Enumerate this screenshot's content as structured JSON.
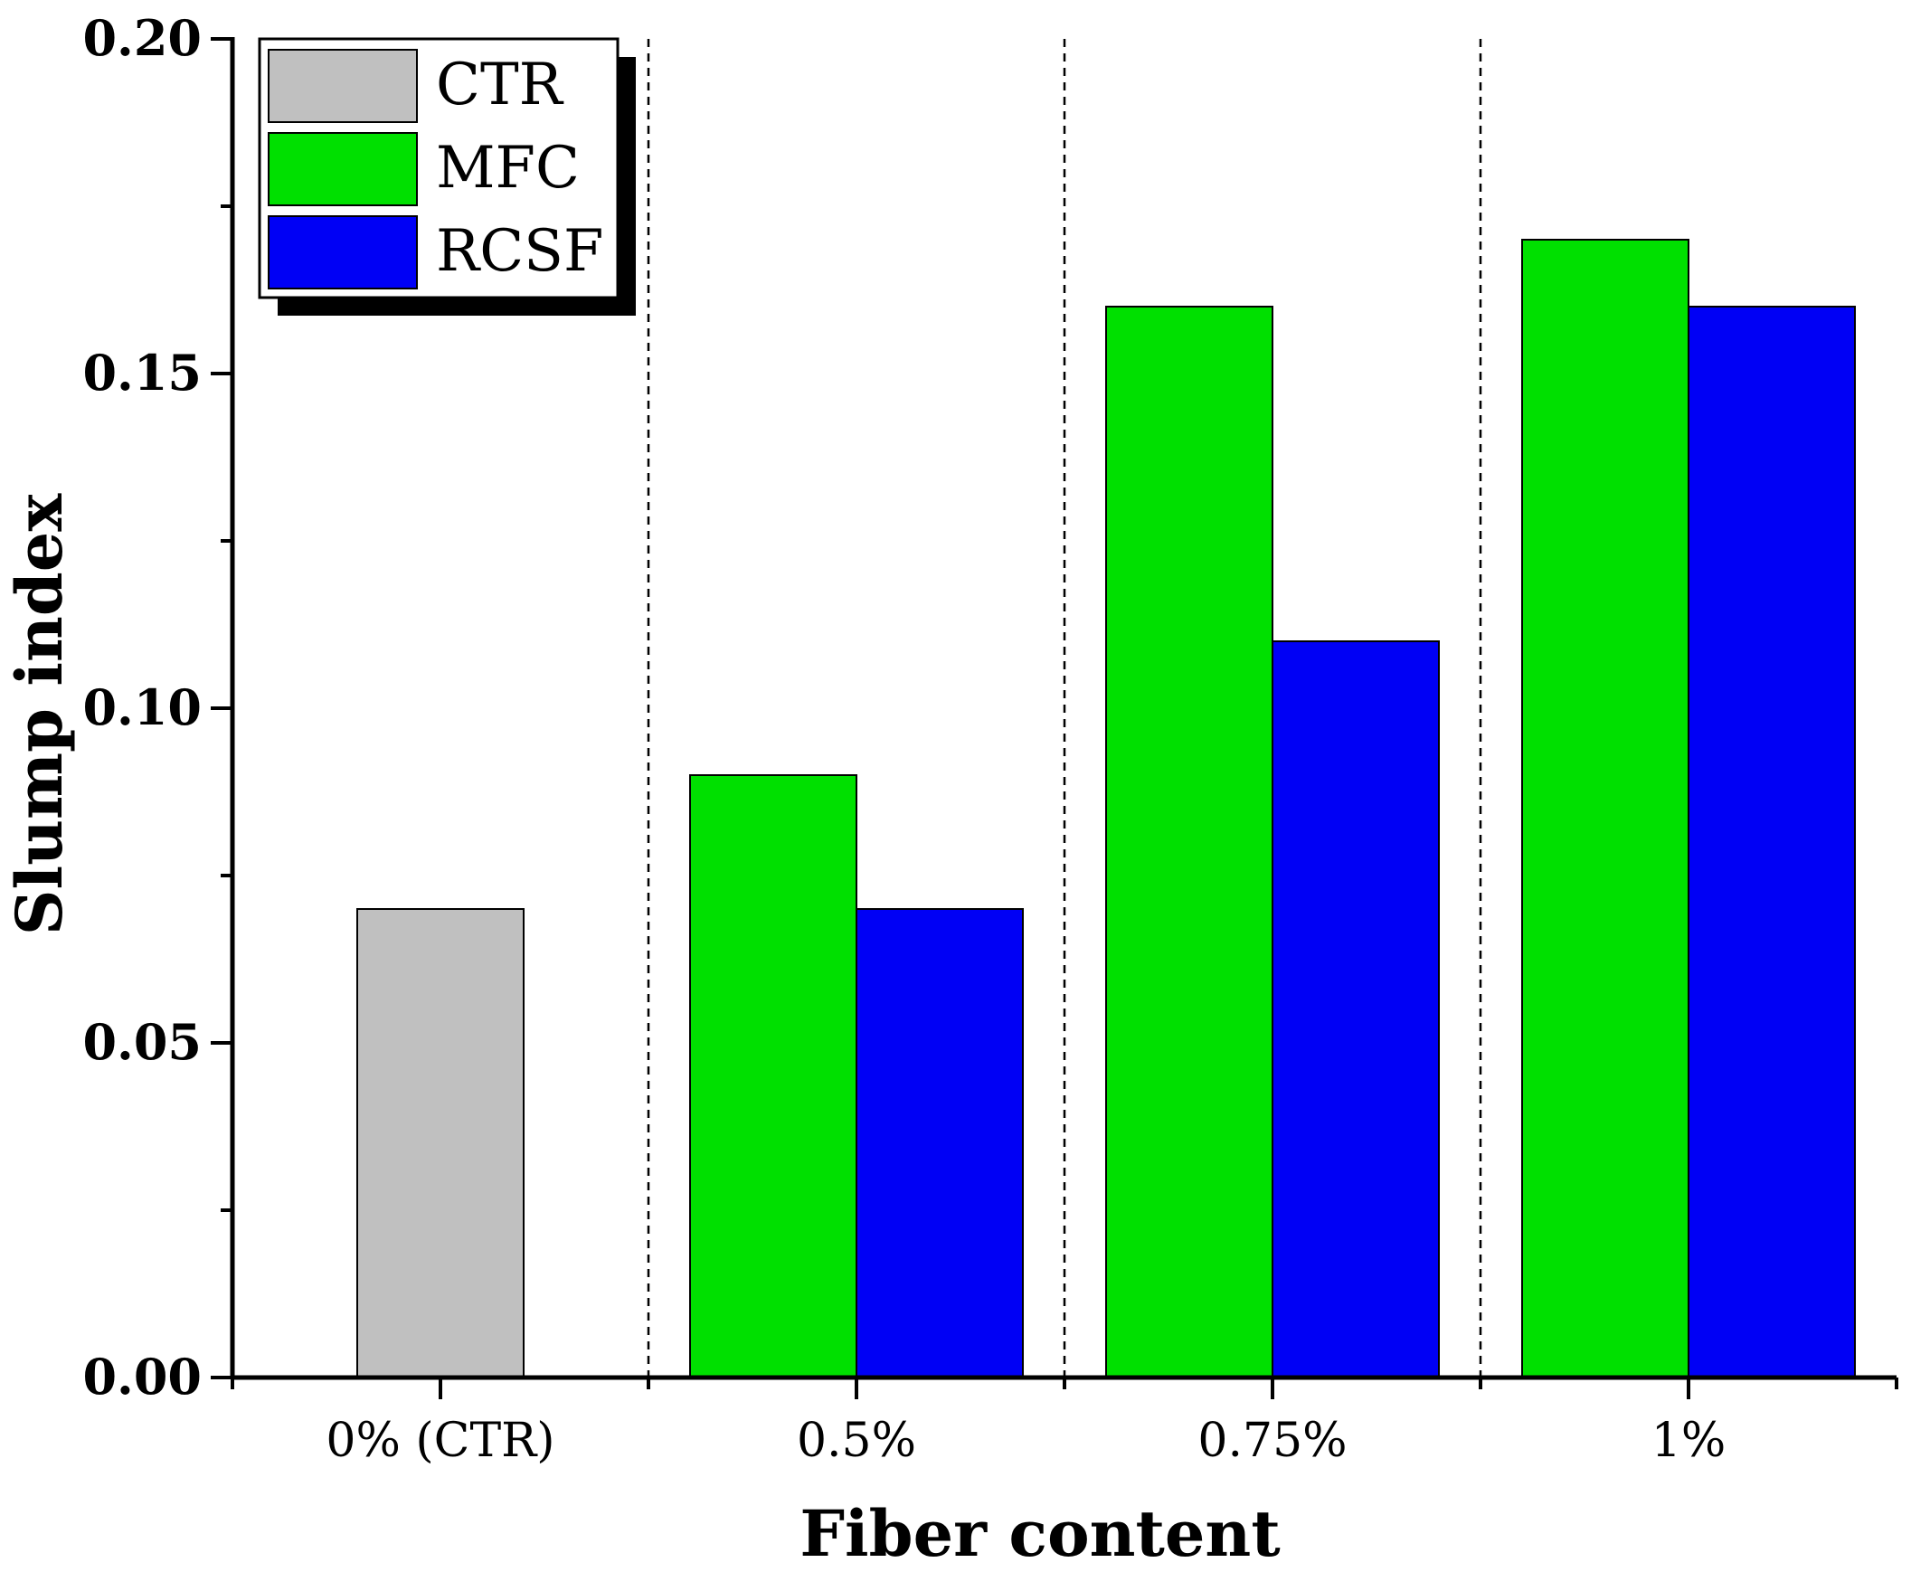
{
  "chart_data": {
    "type": "bar",
    "title": "",
    "xlabel": "Fiber content",
    "ylabel": "Slump index",
    "ylim": [
      0,
      0.2
    ],
    "yticks": [
      "0.00",
      "0.05",
      "0.10",
      "0.15",
      "0.20"
    ],
    "categories": [
      "0% (CTR)",
      "0.5%",
      "0.75%",
      "1%"
    ],
    "series": [
      {
        "name": "CTR",
        "color": "#c0c0c0",
        "values": [
          0.07,
          null,
          null,
          null
        ]
      },
      {
        "name": "MFC",
        "color": "#00e000",
        "values": [
          null,
          0.09,
          0.16,
          0.17
        ]
      },
      {
        "name": "RCSF",
        "color": "#0000f5",
        "values": [
          null,
          0.07,
          0.11,
          0.16
        ]
      }
    ],
    "legend": {
      "position": "top-left"
    },
    "group_separators": "dashed"
  }
}
